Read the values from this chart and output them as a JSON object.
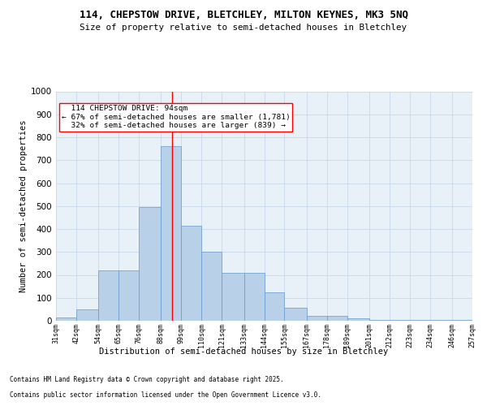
{
  "title_line1": "114, CHEPSTOW DRIVE, BLETCHLEY, MILTON KEYNES, MK3 5NQ",
  "title_line2": "Size of property relative to semi-detached houses in Bletchley",
  "xlabel": "Distribution of semi-detached houses by size in Bletchley",
  "ylabel": "Number of semi-detached properties",
  "footer_line1": "Contains HM Land Registry data © Crown copyright and database right 2025.",
  "footer_line2": "Contains public sector information licensed under the Open Government Licence v3.0.",
  "property_size": 94,
  "property_label": "114 CHEPSTOW DRIVE: 94sqm",
  "pct_smaller": 67,
  "count_smaller": 1781,
  "pct_larger": 32,
  "count_larger": 839,
  "bin_edges": [
    31,
    42,
    54,
    65,
    76,
    88,
    99,
    110,
    121,
    133,
    144,
    155,
    167,
    178,
    189,
    201,
    212,
    223,
    234,
    246,
    257
  ],
  "bin_counts": [
    15,
    50,
    220,
    220,
    495,
    760,
    415,
    300,
    210,
    210,
    125,
    55,
    20,
    20,
    10,
    5,
    5,
    2,
    2,
    2,
    0
  ],
  "bar_color": "#b8d0e8",
  "bar_edge_color": "#6699cc",
  "vline_color": "red",
  "grid_color": "#c8d8ec",
  "background_color": "#e8f0f8",
  "ylim": [
    0,
    1000
  ],
  "yticks": [
    0,
    100,
    200,
    300,
    400,
    500,
    600,
    700,
    800,
    900,
    1000
  ]
}
